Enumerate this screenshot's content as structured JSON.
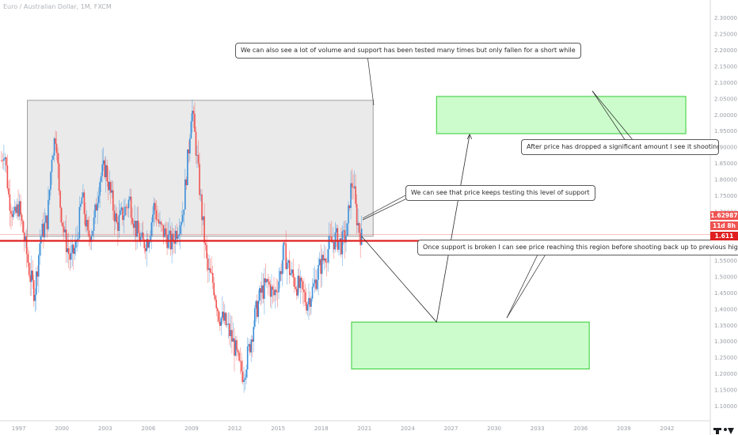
{
  "header": {
    "symbol": "Euro / Australian Dollar, 1M, FXCM"
  },
  "chart_data": {
    "type": "candlestick",
    "title": "Euro / Australian Dollar, 1M, FXCM",
    "xlim": [
      1995.7,
      2045.0
    ],
    "ylim": [
      1.055,
      2.355
    ],
    "x_ticks": [
      1997,
      2000,
      2003,
      2006,
      2009,
      2012,
      2015,
      2018,
      2021,
      2024,
      2027,
      2030,
      2033,
      2036,
      2039,
      2042
    ],
    "y_ticks": [
      1.1,
      1.15,
      1.2,
      1.25,
      1.3,
      1.35,
      1.4,
      1.45,
      1.5,
      1.55,
      1.6,
      1.65,
      1.7,
      1.75,
      1.8,
      1.85,
      1.9,
      1.95,
      2.0,
      2.05,
      2.1,
      2.15,
      2.2,
      2.25,
      2.3
    ],
    "price_path": [
      [
        1995.8,
        1.86
      ],
      [
        1996.0,
        1.9
      ],
      [
        1996.3,
        1.75
      ],
      [
        1996.7,
        1.68
      ],
      [
        1997.0,
        1.72
      ],
      [
        1997.3,
        1.64
      ],
      [
        1997.8,
        1.5
      ],
      [
        1998.1,
        1.45
      ],
      [
        1998.5,
        1.62
      ],
      [
        1999.0,
        1.68
      ],
      [
        1999.3,
        1.88
      ],
      [
        1999.6,
        1.95
      ],
      [
        1999.8,
        1.75
      ],
      [
        2000.2,
        1.62
      ],
      [
        2000.6,
        1.55
      ],
      [
        2001.0,
        1.6
      ],
      [
        2001.4,
        1.75
      ],
      [
        2001.8,
        1.62
      ],
      [
        2002.2,
        1.66
      ],
      [
        2002.6,
        1.8
      ],
      [
        2003.0,
        1.84
      ],
      [
        2003.4,
        1.75
      ],
      [
        2003.8,
        1.66
      ],
      [
        2004.3,
        1.7
      ],
      [
        2004.7,
        1.74
      ],
      [
        2005.1,
        1.65
      ],
      [
        2005.6,
        1.6
      ],
      [
        2006.0,
        1.62
      ],
      [
        2006.4,
        1.72
      ],
      [
        2006.8,
        1.65
      ],
      [
        2007.2,
        1.63
      ],
      [
        2007.6,
        1.6
      ],
      [
        2008.0,
        1.65
      ],
      [
        2008.4,
        1.7
      ],
      [
        2008.8,
        1.9
      ],
      [
        2009.0,
        2.03
      ],
      [
        2009.3,
        1.9
      ],
      [
        2009.7,
        1.7
      ],
      [
        2010.1,
        1.52
      ],
      [
        2010.5,
        1.48
      ],
      [
        2010.9,
        1.38
      ],
      [
        2011.3,
        1.36
      ],
      [
        2011.7,
        1.32
      ],
      [
        2012.0,
        1.28
      ],
      [
        2012.3,
        1.22
      ],
      [
        2012.6,
        1.2
      ],
      [
        2013.0,
        1.28
      ],
      [
        2013.4,
        1.38
      ],
      [
        2013.8,
        1.45
      ],
      [
        2014.3,
        1.48
      ],
      [
        2014.7,
        1.44
      ],
      [
        2015.1,
        1.5
      ],
      [
        2015.4,
        1.58
      ],
      [
        2015.8,
        1.52
      ],
      [
        2016.2,
        1.48
      ],
      [
        2016.6,
        1.46
      ],
      [
        2017.0,
        1.42
      ],
      [
        2017.4,
        1.46
      ],
      [
        2017.8,
        1.52
      ],
      [
        2018.2,
        1.56
      ],
      [
        2018.6,
        1.6
      ],
      [
        2019.0,
        1.62
      ],
      [
        2019.4,
        1.6
      ],
      [
        2019.8,
        1.64
      ],
      [
        2020.0,
        1.76
      ],
      [
        2020.2,
        1.8
      ],
      [
        2020.4,
        1.7
      ],
      [
        2020.6,
        1.65
      ],
      [
        2020.8,
        1.62
      ]
    ],
    "last_price": 1.62987,
    "support_level": 1.611,
    "countdown": "11d 8h",
    "series": [
      {
        "name": "EURAUD",
        "color_up": "#3a8fd9",
        "color_down": "#ef5350"
      }
    ],
    "zones": [
      {
        "name": "consolidation-box",
        "x": [
          1997.6,
          2021.6
        ],
        "y": [
          1.625,
          2.045
        ],
        "color": "#e6e6e6"
      },
      {
        "name": "upper-target",
        "x": [
          2026.0,
          2043.3
        ],
        "y": [
          1.942,
          2.057
        ],
        "color": "#ccfccc"
      },
      {
        "name": "lower-target",
        "x": [
          2020.1,
          2036.6
        ],
        "y": [
          1.215,
          1.36
        ],
        "color": "#ccfccc"
      }
    ],
    "projection": [
      [
        2020.8,
        1.625
      ],
      [
        2026.0,
        1.36
      ],
      [
        2028.3,
        1.94
      ]
    ],
    "annotations": [
      "We can also see a lot of volume and support has been tested many times but only fallen for a short while",
      "We can see that price keeps testing this level of support",
      "After price has dropped a significant amount I see it shooting up to previous",
      "Once support is broken I can see price reaching this region before shooting back up to previous highs"
    ]
  }
}
